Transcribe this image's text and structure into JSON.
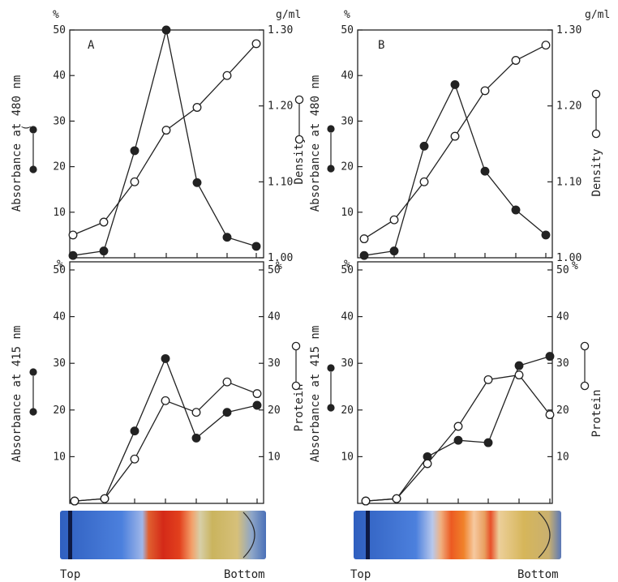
{
  "chart_data": [
    {
      "panel": "A",
      "position": "top-left",
      "type": "line",
      "panel_label": "A",
      "x": [
        1,
        2,
        3,
        4,
        5,
        6,
        7
      ],
      "left_unit": "%",
      "right_unit": "g/ml",
      "ylabel_left": "Absorbance at 480 nm",
      "ylabel_right": "Density",
      "ylim_left": [
        0,
        50
      ],
      "ylim_right": [
        1.0,
        1.3
      ],
      "left_ticks": [
        "10",
        "20",
        "30",
        "40",
        "50"
      ],
      "right_ticks": [
        "1.00",
        "1.10",
        "1.20",
        "1.30"
      ],
      "series": [
        {
          "marker": "filled",
          "axis": "left",
          "values": [
            0.5,
            1.5,
            23.5,
            50,
            16.5,
            4.5,
            2.5
          ]
        },
        {
          "marker": "open",
          "axis": "right",
          "values": [
            1.03,
            1.047,
            1.1,
            1.168,
            1.198,
            1.24,
            1.282
          ]
        }
      ]
    },
    {
      "panel": "B",
      "position": "top-right",
      "type": "line",
      "panel_label": "B",
      "x": [
        1,
        2,
        3,
        4,
        5,
        6,
        7
      ],
      "left_unit": "%",
      "right_unit": "g/ml",
      "ylabel_left": "Absorbance at 480 nm",
      "ylabel_right": "Density",
      "ylim_left": [
        0,
        50
      ],
      "ylim_right": [
        1.0,
        1.3
      ],
      "left_ticks": [
        "10",
        "20",
        "30",
        "40",
        "50"
      ],
      "right_ticks": [
        "1.00",
        "1.10",
        "1.20",
        "1.30"
      ],
      "series": [
        {
          "marker": "filled",
          "axis": "left",
          "values": [
            0.5,
            1.5,
            24.5,
            38,
            19,
            10.5,
            5
          ]
        },
        {
          "marker": "open",
          "axis": "right",
          "values": [
            1.025,
            1.05,
            1.1,
            1.16,
            1.22,
            1.26,
            1.28
          ]
        }
      ]
    },
    {
      "panel": "A-lower",
      "position": "bottom-left",
      "type": "line",
      "x": [
        1,
        2,
        3,
        4,
        5,
        6,
        7
      ],
      "left_unit": "%",
      "right_unit": "%",
      "ylabel_left": "Absorbance at 415 nm",
      "ylabel_right": "Protein",
      "ylim_left": [
        0,
        50
      ],
      "ylim_right": [
        0,
        50
      ],
      "left_ticks": [
        "10",
        "20",
        "30",
        "40",
        "50"
      ],
      "right_ticks": [
        "10",
        "20",
        "30",
        "40",
        "50"
      ],
      "series": [
        {
          "marker": "filled",
          "axis": "left",
          "values": [
            0.5,
            1,
            15.5,
            31,
            14,
            19.5,
            21
          ]
        },
        {
          "marker": "open",
          "axis": "right",
          "values": [
            0.5,
            1,
            9.5,
            22,
            19.5,
            26,
            23.5
          ]
        }
      ]
    },
    {
      "panel": "B-lower",
      "position": "bottom-right",
      "type": "line",
      "x": [
        1,
        2,
        3,
        4,
        5,
        6,
        7
      ],
      "left_unit": "%",
      "right_unit": "%",
      "ylabel_left": "Absorbance at 415 nm",
      "ylabel_right": "Protein",
      "ylim_left": [
        0,
        50
      ],
      "ylim_right": [
        0,
        50
      ],
      "left_ticks": [
        "10",
        "20",
        "30",
        "40",
        "50"
      ],
      "right_ticks": [
        "10",
        "20",
        "30",
        "40",
        "50"
      ],
      "series": [
        {
          "marker": "filled",
          "axis": "left",
          "values": [
            0.5,
            1,
            10,
            13.5,
            13,
            29.5,
            31.5
          ]
        },
        {
          "marker": "open",
          "axis": "right",
          "values": [
            0.5,
            1,
            8.5,
            16.5,
            26.5,
            27.5,
            19
          ]
        }
      ]
    }
  ],
  "tube": {
    "top_label": "Top",
    "bottom_label": "Bottom"
  },
  "colors": {
    "ink": "#222222",
    "tube_blue": "#3d6fd0",
    "tube_red": "#d42a18",
    "tube_orange": "#f0822a",
    "tube_yellow": "#d6b65a"
  }
}
